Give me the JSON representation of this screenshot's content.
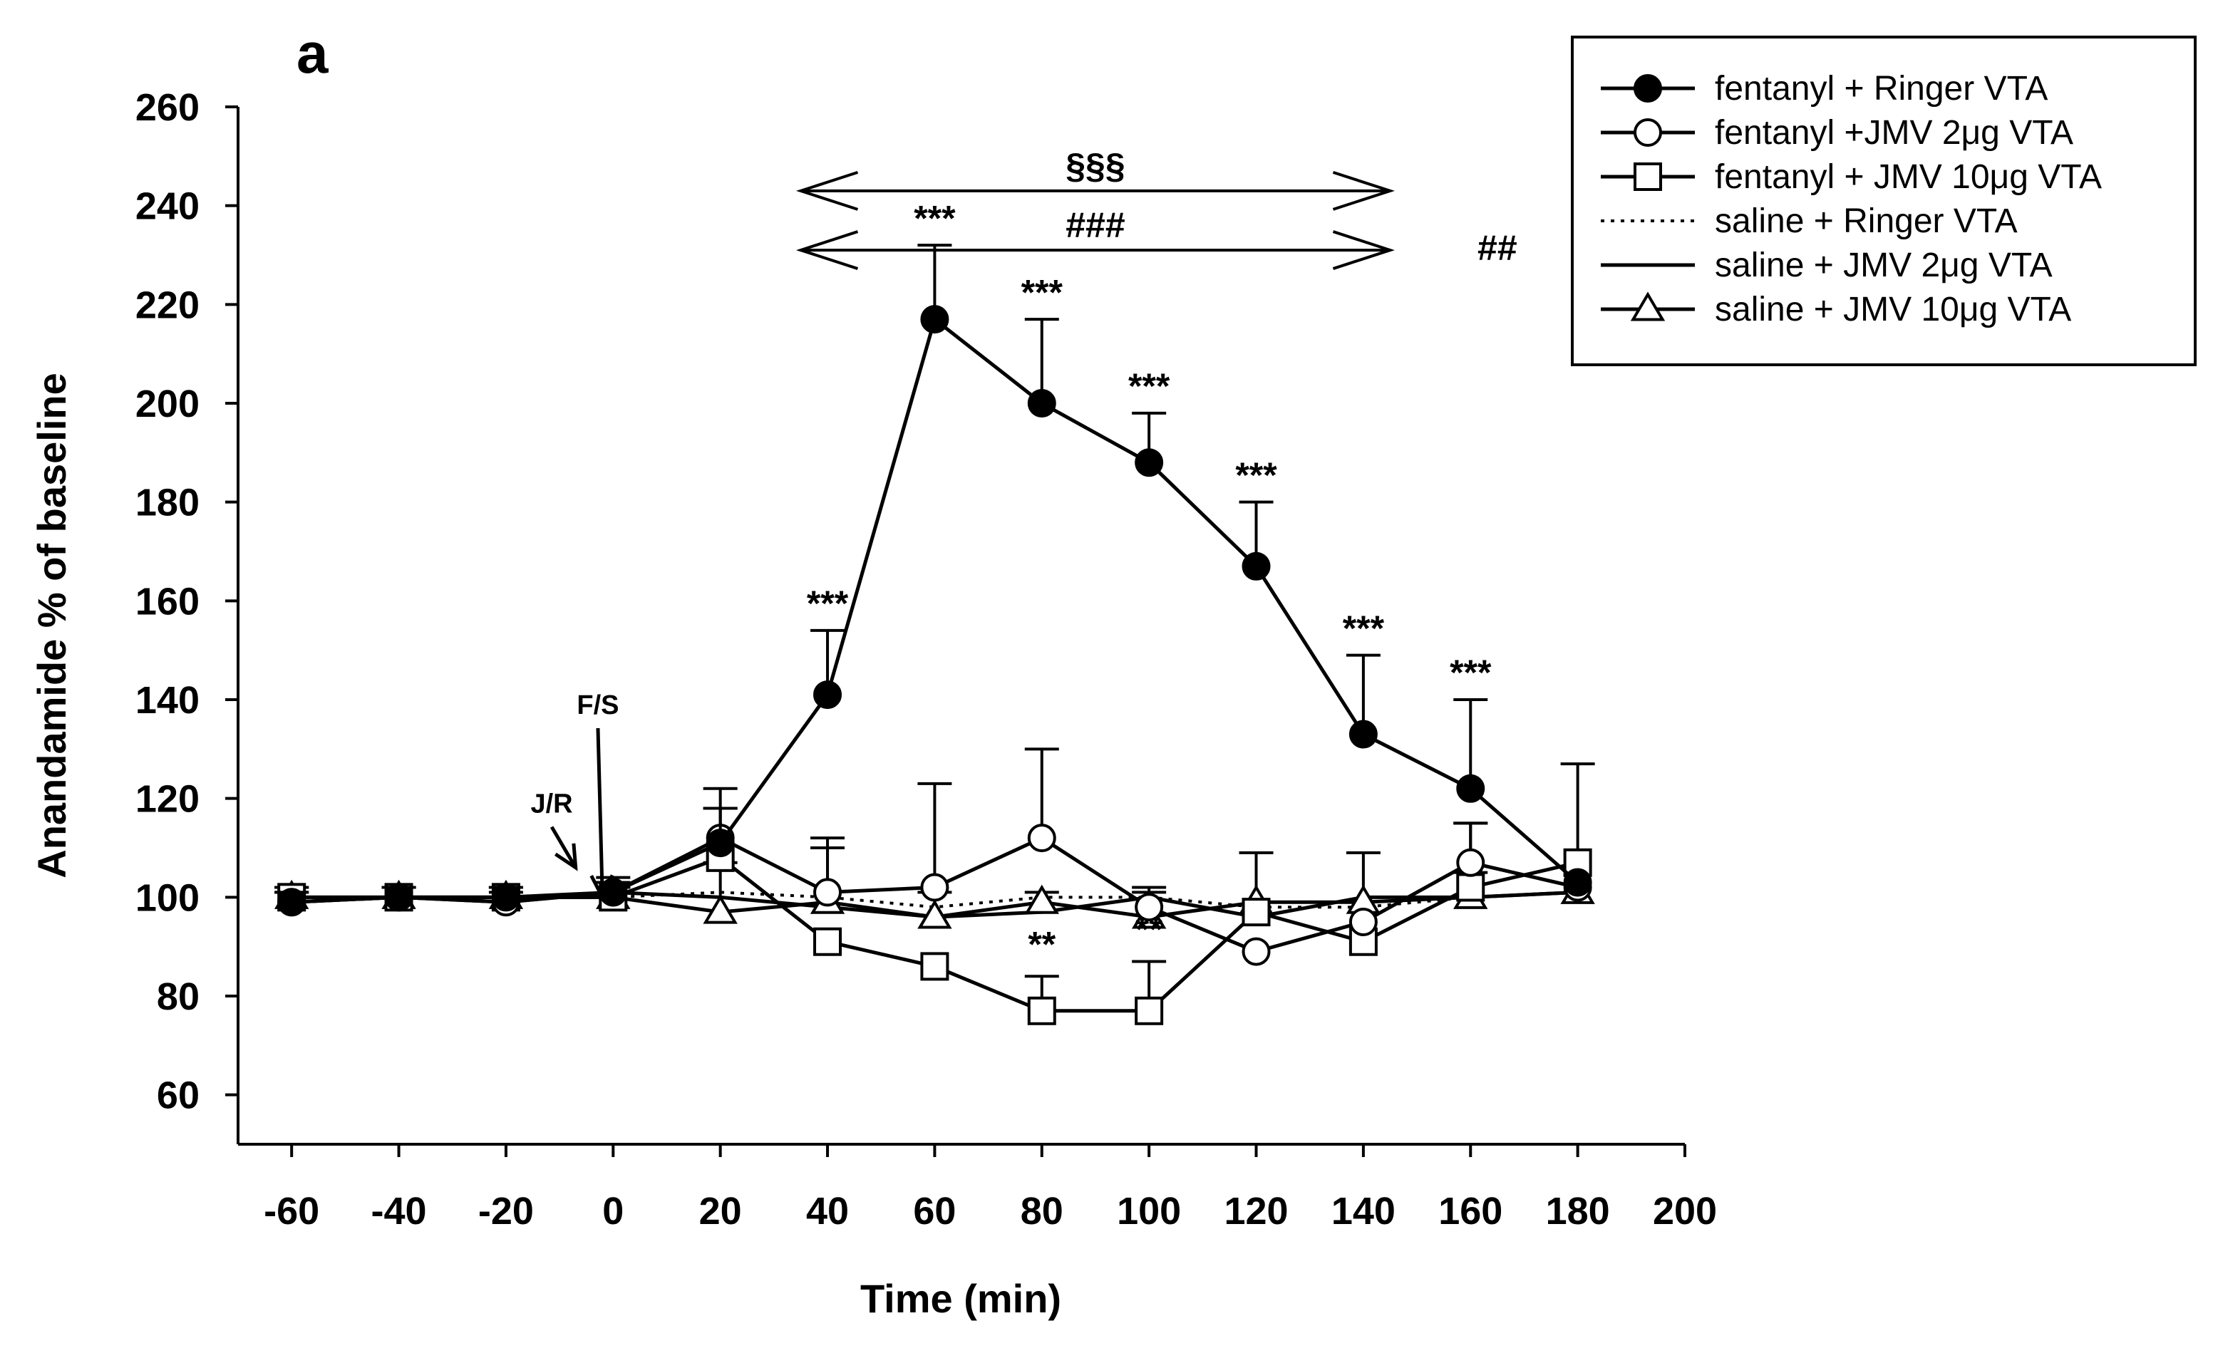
{
  "chart_data": {
    "type": "line",
    "panel_label": "a",
    "title": "",
    "xlabel": "Time (min)",
    "ylabel": "Anandamide % of baseline",
    "xlim": [
      -70,
      200
    ],
    "ylim": [
      50,
      260
    ],
    "x_ticks": [
      -60,
      -40,
      -20,
      0,
      20,
      40,
      60,
      80,
      100,
      120,
      140,
      160,
      180,
      200
    ],
    "y_ticks": [
      60,
      80,
      100,
      120,
      140,
      160,
      180,
      200,
      220,
      240,
      260
    ],
    "grid": false,
    "legend_position": "top-right",
    "x": [
      -60,
      -40,
      -20,
      0,
      20,
      40,
      60,
      80,
      100,
      120,
      140,
      160,
      180
    ],
    "series": [
      {
        "name": "fentanyl + Ringer VTA",
        "marker": "filled-circle",
        "line": "solid",
        "values": [
          99,
          100,
          100,
          101,
          111,
          141,
          217,
          200,
          188,
          167,
          133,
          122,
          103
        ],
        "errors": [
          2,
          2,
          2,
          3,
          7,
          13,
          15,
          17,
          10,
          13,
          16,
          18,
          0
        ]
      },
      {
        "name": "fentanyl +JMV 2μg VTA",
        "marker": "open-circle",
        "line": "solid",
        "values": [
          99,
          100,
          99,
          101,
          112,
          101,
          102,
          112,
          98,
          89,
          95,
          107,
          102
        ],
        "errors": [
          2,
          2,
          2,
          2,
          10,
          11,
          21,
          18,
          4,
          0,
          0,
          8,
          0
        ]
      },
      {
        "name": "fentanyl + JMV 10μg VTA",
        "marker": "open-square",
        "line": "solid",
        "values": [
          100,
          100,
          100,
          100,
          108,
          91,
          86,
          77,
          77,
          97,
          91,
          102,
          107
        ],
        "errors": [
          2,
          2,
          2,
          2,
          10,
          0,
          0,
          7,
          10,
          0,
          0,
          13,
          20
        ]
      },
      {
        "name": "saline + Ringer VTA",
        "marker": "none",
        "line": "dotted",
        "values": [
          100,
          100,
          100,
          100,
          101,
          100,
          98,
          100,
          100,
          98,
          98,
          100,
          101
        ],
        "errors": [
          0,
          0,
          0,
          0,
          0,
          0,
          0,
          0,
          0,
          0,
          0,
          0,
          0
        ]
      },
      {
        "name": "saline + JMV 2μg VTA",
        "marker": "none",
        "line": "solid",
        "values": [
          99,
          100,
          99,
          101,
          100,
          98,
          96,
          97,
          100,
          96,
          100,
          100,
          101
        ],
        "errors": [
          0,
          0,
          0,
          0,
          0,
          0,
          0,
          0,
          0,
          0,
          0,
          0,
          0
        ]
      },
      {
        "name": "saline + JMV 10μg VTA",
        "marker": "open-triangle",
        "line": "solid",
        "values": [
          100,
          100,
          100,
          100,
          97,
          99,
          96,
          99,
          96,
          99,
          99,
          100,
          101
        ],
        "errors": [
          2,
          2,
          2,
          2,
          10,
          11,
          5,
          2,
          5,
          10,
          10,
          5,
          0
        ]
      }
    ],
    "annotations": [
      {
        "text": "***",
        "x": 40,
        "y": 157
      },
      {
        "text": "***",
        "x": 60,
        "y": 235
      },
      {
        "text": "***",
        "x": 80,
        "y": 220
      },
      {
        "text": "***",
        "x": 100,
        "y": 201
      },
      {
        "text": "***",
        "x": 120,
        "y": 183
      },
      {
        "text": "***",
        "x": 140,
        "y": 152
      },
      {
        "text": "***",
        "x": 160,
        "y": 143
      },
      {
        "text": "**",
        "x": 80,
        "y": 88
      },
      {
        "text": "**",
        "x": 100,
        "y": 91
      }
    ],
    "bracket_annotations": [
      {
        "text": "§§§",
        "x_start": 35,
        "x_end": 145,
        "y": 243
      },
      {
        "text": "###",
        "x_start": 35,
        "x_end": 145,
        "y": 231
      },
      {
        "text": "##",
        "x_start": 165,
        "x_end": 165,
        "y": 231
      }
    ],
    "event_markers": [
      {
        "label": "J/R",
        "x": -7
      },
      {
        "label": "F/S",
        "x": -2
      }
    ]
  }
}
